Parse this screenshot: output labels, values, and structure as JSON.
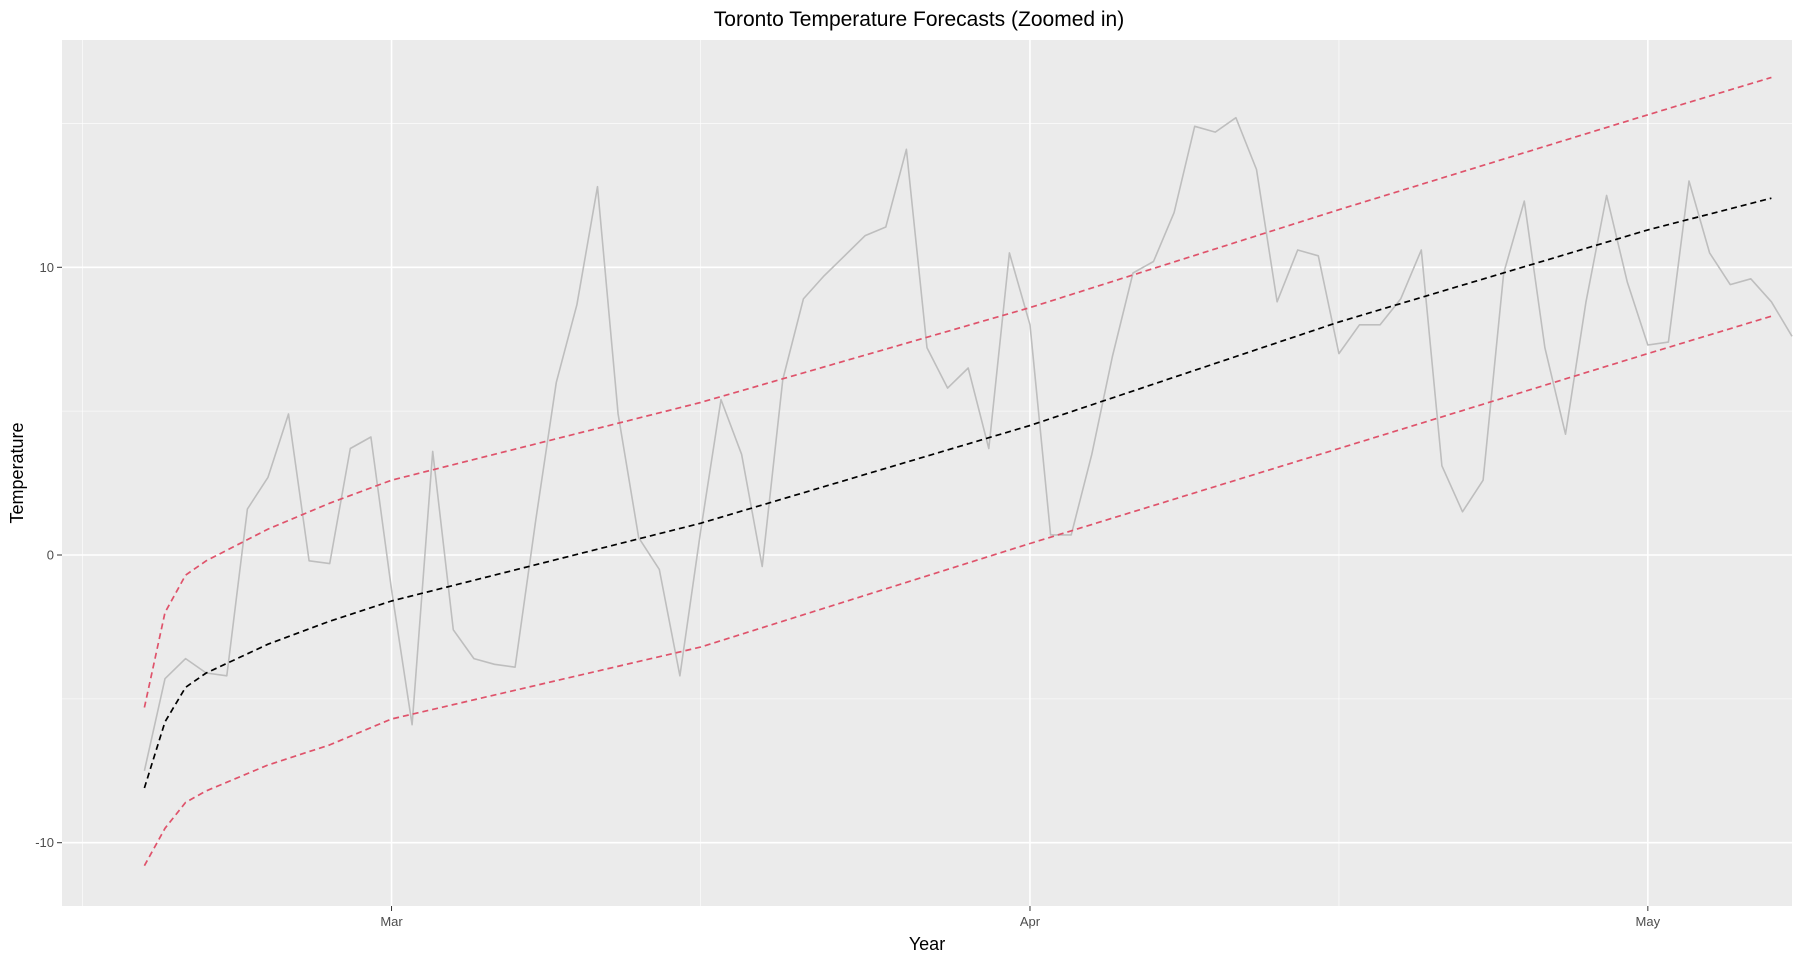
{
  "chart_data": {
    "type": "line",
    "title": "Toronto Temperature Forecasts (Zoomed in)",
    "xlabel": "Year",
    "ylabel": "Temperature",
    "x_type": "date",
    "xlim": [
      "2020-02-14",
      "2020-05-08"
    ],
    "ylim": [
      -12.2,
      17.9
    ],
    "x_ticks": [
      {
        "date": "2020-03-01",
        "label": "Mar"
      },
      {
        "date": "2020-04-01",
        "label": "Apr"
      },
      {
        "date": "2020-05-01",
        "label": "May"
      }
    ],
    "x_minor_ticks": [
      "2020-02-15",
      "2020-03-16",
      "2020-04-16"
    ],
    "y_ticks": [
      -10,
      0,
      10
    ],
    "y_minor_ticks": [
      -5,
      5,
      15
    ],
    "grid": true,
    "background": "#ebebeb",
    "grid_color": "#ffffff",
    "series": [
      {
        "role": "observed",
        "color": "#bebebe",
        "dash": "solid",
        "x_start": "2020-02-18",
        "values": [
          -7.5,
          -4.3,
          -3.6,
          -4.1,
          -4.2,
          1.6,
          2.7,
          4.9,
          -0.2,
          -0.3,
          3.7,
          4.1,
          -1.2,
          -5.9,
          3.6,
          -2.6,
          -3.6,
          -3.8,
          -3.9,
          1.2,
          6.0,
          8.7,
          12.8,
          4.9,
          0.6,
          -0.5,
          -4.2,
          0.8,
          5.4,
          3.5,
          -0.4,
          6.1,
          8.9,
          9.7,
          10.4,
          11.1,
          11.4,
          14.1,
          7.2,
          5.8,
          6.5,
          3.7,
          10.5,
          8.0,
          0.7,
          0.7,
          3.5,
          6.9,
          9.8,
          10.2,
          11.9,
          14.9,
          14.7,
          15.2,
          13.4,
          8.8,
          10.6,
          10.4,
          7.0,
          8.0,
          8.0,
          8.9,
          10.6,
          3.1,
          1.5,
          2.6,
          9.8,
          12.3,
          7.2,
          4.2,
          8.8,
          12.5,
          9.5,
          7.3,
          7.4,
          13.0,
          10.5,
          9.4,
          9.6,
          8.8,
          7.6
        ]
      },
      {
        "role": "forecast",
        "color": "#000000",
        "dash": "dashed",
        "points": [
          [
            "2020-02-18",
            -8.1
          ],
          [
            "2020-02-19",
            -5.8
          ],
          [
            "2020-02-20",
            -4.6
          ],
          [
            "2020-02-21",
            -4.1
          ],
          [
            "2020-02-24",
            -3.1
          ],
          [
            "2020-02-27",
            -2.3
          ],
          [
            "2020-03-01",
            -1.6
          ],
          [
            "2020-03-16",
            1.1
          ],
          [
            "2020-04-01",
            4.5
          ],
          [
            "2020-04-16",
            8.1
          ],
          [
            "2020-05-01",
            11.3
          ],
          [
            "2020-05-07",
            12.4
          ]
        ]
      },
      {
        "role": "upper-bound",
        "color": "#df536b",
        "dash": "dashed",
        "points": [
          [
            "2020-02-18",
            -5.3
          ],
          [
            "2020-02-19",
            -2.0
          ],
          [
            "2020-02-20",
            -0.7
          ],
          [
            "2020-02-21",
            -0.2
          ],
          [
            "2020-02-24",
            0.9
          ],
          [
            "2020-02-27",
            1.8
          ],
          [
            "2020-03-01",
            2.6
          ],
          [
            "2020-03-16",
            5.3
          ],
          [
            "2020-04-01",
            8.6
          ],
          [
            "2020-04-16",
            12.0
          ],
          [
            "2020-05-01",
            15.3
          ],
          [
            "2020-05-07",
            16.6
          ]
        ]
      },
      {
        "role": "lower-bound",
        "color": "#df536b",
        "dash": "dashed",
        "points": [
          [
            "2020-02-18",
            -10.8
          ],
          [
            "2020-02-19",
            -9.5
          ],
          [
            "2020-02-20",
            -8.6
          ],
          [
            "2020-02-21",
            -8.2
          ],
          [
            "2020-02-24",
            -7.3
          ],
          [
            "2020-02-27",
            -6.6
          ],
          [
            "2020-03-01",
            -5.7
          ],
          [
            "2020-03-16",
            -3.2
          ],
          [
            "2020-04-01",
            0.4
          ],
          [
            "2020-04-16",
            3.7
          ],
          [
            "2020-05-01",
            7.0
          ],
          [
            "2020-05-07",
            8.3
          ]
        ]
      }
    ]
  }
}
